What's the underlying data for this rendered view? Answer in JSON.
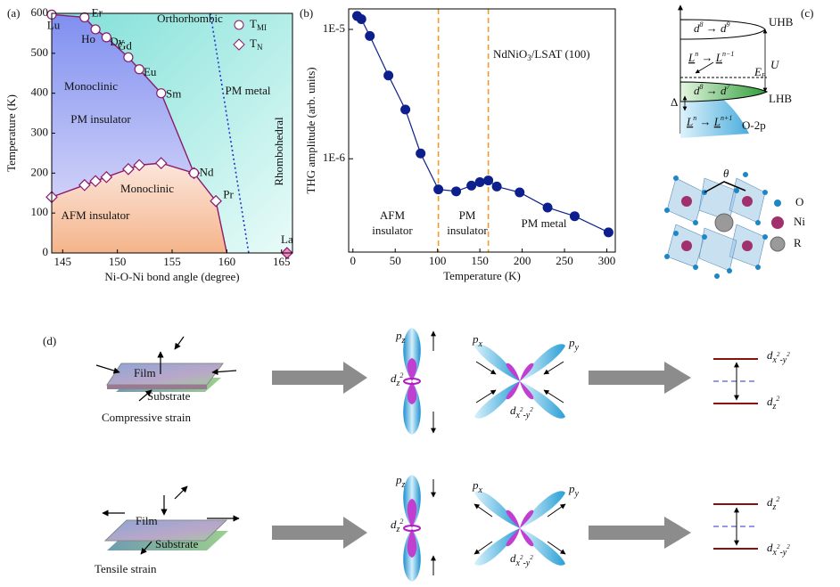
{
  "panel_labels": [
    "(a)",
    "(b)",
    "(c)",
    "(d)"
  ],
  "chart_data": [
    {
      "type": "scatter",
      "xlabel": "Ni-O-Ni bond angle (degree)",
      "ylabel": "Temperature (K)",
      "xlim": [
        144,
        166
      ],
      "xticks": [
        145,
        150,
        155,
        160,
        165
      ],
      "ylim": [
        0,
        600
      ],
      "yticks": [
        0,
        100,
        200,
        300,
        400,
        500,
        600
      ],
      "legend": "upper right",
      "series": [
        {
          "name": [
            "T",
            "MI"
          ],
          "color": "#8b1a6b",
          "marker": "circle",
          "x": [
            144,
            147,
            148,
            149,
            151,
            152,
            154,
            157
          ],
          "values": [
            597,
            590,
            560,
            540,
            490,
            460,
            400,
            200
          ],
          "point_labels": [
            "Lu",
            "Er",
            "Ho",
            "Dy",
            "Gd",
            "Eu",
            "Sm",
            "Nd"
          ]
        },
        {
          "name": [
            "T",
            "N"
          ],
          "color": "#8b1a6b",
          "marker": "diamond",
          "x": [
            144,
            147,
            148,
            149,
            151,
            152,
            154,
            157,
            159,
            165.5
          ],
          "values": [
            140,
            170,
            180,
            190,
            210,
            220,
            225,
            200,
            130,
            0
          ],
          "point_labels": [
            null,
            null,
            null,
            null,
            null,
            null,
            null,
            null,
            "Pr",
            "La"
          ]
        }
      ],
      "annotations": [
        "Orthorhombic",
        "Monoclinic",
        "PM insulator",
        "Monoclinic",
        "AFM insulator",
        "PM metal",
        "Rhombohedral"
      ]
    },
    {
      "type": "line",
      "log_y": true,
      "xlabel": "Temperature (K)",
      "ylabel": "THG amplitude (arb. units)",
      "xlim": [
        -5,
        310
      ],
      "xticks": [
        0,
        50,
        100,
        150,
        200,
        250,
        300
      ],
      "ylim": [
        1.9e-07,
        1.44e-05
      ],
      "yticks": [
        {
          "value": 1e-06,
          "label": "1E-6"
        },
        {
          "value": 1e-05,
          "label": "1E-5"
        }
      ],
      "vlines": [
        101,
        160
      ],
      "series": [
        {
          "color": "#0d1f8c",
          "x": [
            5,
            10,
            20,
            42,
            62,
            80,
            101,
            122,
            140,
            150,
            160,
            170,
            197,
            230,
            262,
            302
          ],
          "values": [
            1.27e-05,
            1.2e-05,
            8.9e-06,
            4.4e-06,
            2.4e-06,
            1.1e-06,
            5.8e-07,
            5.6e-07,
            6.2e-07,
            6.6e-07,
            6.8e-07,
            6.1e-07,
            5.5e-07,
            4.2e-07,
            3.6e-07,
            2.7e-07
          ]
        }
      ],
      "annotations": [
        [
          "NdNiO",
          "3",
          "/LSAT (100)"
        ],
        [
          "AFM",
          "insulator"
        ],
        [
          "PM",
          "insulator"
        ],
        "PM metal"
      ]
    }
  ],
  "panel_c": {
    "bands": {
      "uhb": "UHB",
      "lhb": "LHB",
      "o2p": "O-2p",
      "u": "U",
      "delta": "Δ",
      "ef": [
        "E",
        "F"
      ],
      "t1": [
        "d",
        "8",
        " → d",
        "9"
      ],
      "t2": [
        "L",
        "n",
        " → ",
        "L",
        "n−1"
      ],
      "t3": [
        "d",
        "8",
        " → d",
        "7"
      ],
      "t4": [
        "L",
        "n",
        " → ",
        "L",
        "n+1"
      ]
    },
    "structure": {
      "theta": "θ",
      "legend": [
        "O",
        "Ni",
        "R"
      ]
    }
  },
  "panel_d": {
    "film": "Film",
    "substrate": "Substrate",
    "compressive": "Compressive strain",
    "tensile": "Tensile strain",
    "pz": [
      "p",
      "z"
    ],
    "px": [
      "p",
      "x"
    ],
    "py": [
      "p",
      "y"
    ],
    "dz2": [
      "d",
      "z",
      "2"
    ],
    "dx2y2": [
      "d",
      "x",
      "2",
      "-y",
      "2"
    ]
  }
}
